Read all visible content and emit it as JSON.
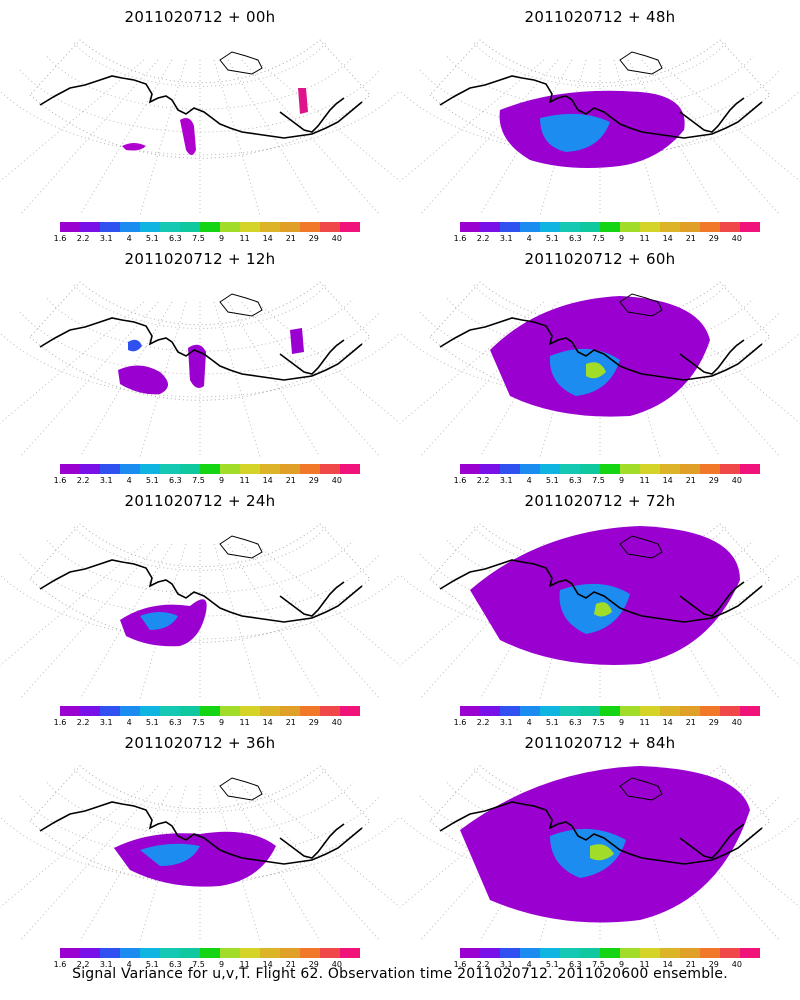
{
  "panels": [
    {
      "title": "2011020712 + 00h",
      "level": 0
    },
    {
      "title": "2011020712 + 48h",
      "level": 4
    },
    {
      "title": "2011020712 + 12h",
      "level": 1
    },
    {
      "title": "2011020712 + 60h",
      "level": 5
    },
    {
      "title": "2011020712 + 24h",
      "level": 2
    },
    {
      "title": "2011020712 + 72h",
      "level": 6
    },
    {
      "title": "2011020712 + 36h",
      "level": 3
    },
    {
      "title": "2011020712 + 84h",
      "level": 7
    }
  ],
  "colorbar": {
    "labels": [
      "1.6",
      "2.2",
      "3.1",
      "4",
      "5.1",
      "6.3",
      "7.5",
      "9",
      "11",
      "14",
      "21",
      "29",
      "40"
    ],
    "colors": [
      "#9a00d0",
      "#7a10e8",
      "#3050f0",
      "#1c8cf0",
      "#10b4e0",
      "#14c8b4",
      "#10c8a0",
      "#14d414",
      "#a0dc28",
      "#d4d428",
      "#dcb428",
      "#e0a028",
      "#f07828",
      "#f04848",
      "#f0147a"
    ]
  },
  "caption": "Signal Variance for u,v,T. Flight 62. Observation time 2011020712. 2011020600 ensemble."
}
